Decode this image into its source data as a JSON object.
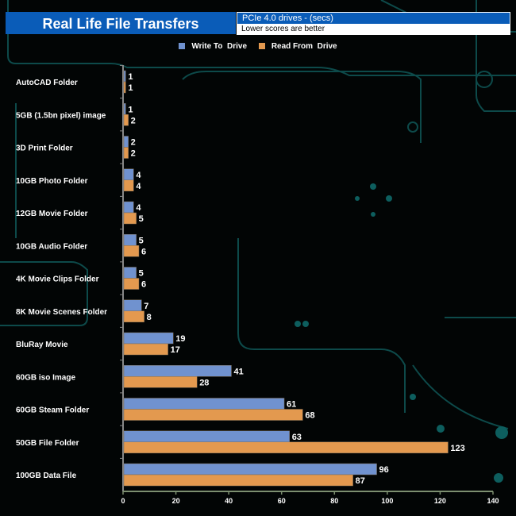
{
  "chart_data": {
    "type": "bar",
    "orientation": "horizontal",
    "title": "Real Life File Transfers",
    "subtitle": "PCIe 4.0 drives - (secs)",
    "note": "Lower scores are better",
    "categories": [
      "AutoCAD Folder",
      "5GB (1.5bn pixel) image",
      "3D Print Folder",
      "10GB Photo Folder",
      "12GB Movie Folder",
      "10GB Audio Folder",
      "4K Movie Clips Folder",
      "8K Movie Scenes Folder",
      "BluRay Movie",
      "60GB iso Image",
      "60GB Steam Folder",
      "50GB File Folder",
      "100GB Data File"
    ],
    "series": [
      {
        "name": "Write To  Drive",
        "color": "#7092cf",
        "values": [
          1,
          1,
          2,
          4,
          4,
          5,
          5,
          7,
          19,
          41,
          61,
          63,
          96
        ]
      },
      {
        "name": "Read From  Drive",
        "color": "#e3994f",
        "values": [
          1,
          2,
          2,
          4,
          5,
          6,
          6,
          8,
          17,
          28,
          68,
          123,
          87
        ]
      }
    ],
    "xlim": [
      0,
      140
    ],
    "xticks": [
      0,
      20,
      40,
      60,
      80,
      100,
      120,
      140
    ],
    "grid": false,
    "legend_position": "top"
  }
}
